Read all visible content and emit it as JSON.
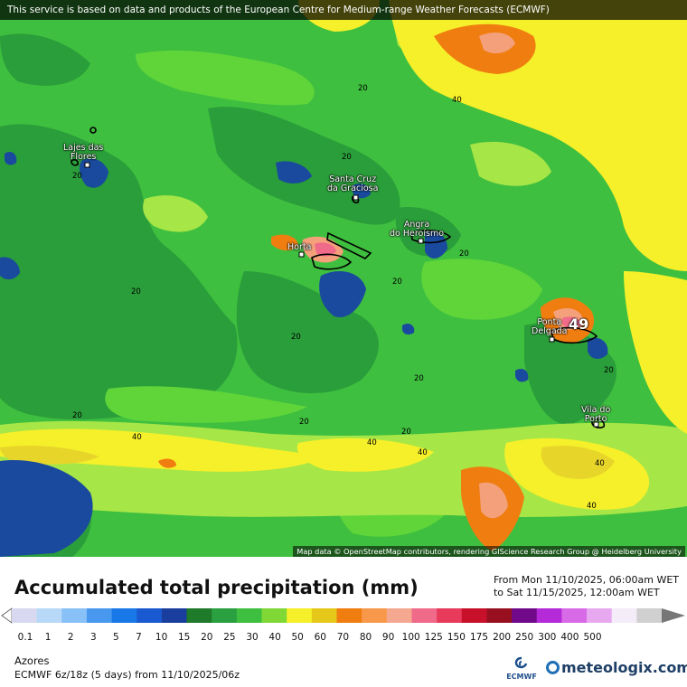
{
  "banner": "This service is based on data and products of the European Centre for Medium-range Weather Forecasts (ECMWF)",
  "attribution": "Map data © OpenStreetMap contributors, rendering GIScience Research Group @ Heidelberg University",
  "colors": {
    "green_dark": "#2a9e3a",
    "green": "#3fbf3f",
    "green_light": "#5fd53a",
    "yellow_green": "#a6e646",
    "yellow": "#f5f02a",
    "yellow_dark": "#e8d52a",
    "orange": "#f07d10",
    "salmon": "#f4a07a",
    "pink": "#f06a8a",
    "blue": "#1a4a9e"
  },
  "towns": [
    {
      "id": "lajes",
      "line1": "Lajes das",
      "line2": "Flores"
    },
    {
      "id": "santa-cruz",
      "line1": "Santa Cruz",
      "line2": "da Graciosa"
    },
    {
      "id": "angra",
      "line1": "Angra",
      "line2": "do Heroísmo"
    },
    {
      "id": "horta",
      "line1": "Horta",
      "line2": ""
    },
    {
      "id": "ponta",
      "line1": "Ponta",
      "line2": "Delgada"
    },
    {
      "id": "vila",
      "line1": "Vila do",
      "line2": "Porto"
    }
  ],
  "isoline_labels": [
    {
      "id": "iso-1",
      "text": "20"
    },
    {
      "id": "iso-2",
      "text": "40"
    },
    {
      "id": "iso-3",
      "text": "20"
    },
    {
      "id": "iso-4",
      "text": "20"
    },
    {
      "id": "iso-5",
      "text": "20"
    },
    {
      "id": "iso-6",
      "text": "20"
    },
    {
      "id": "iso-7",
      "text": "20"
    },
    {
      "id": "iso-8",
      "text": "20"
    },
    {
      "id": "iso-9",
      "text": "20"
    },
    {
      "id": "iso-10",
      "text": "20"
    },
    {
      "id": "iso-11",
      "text": "40"
    },
    {
      "id": "iso-12",
      "text": "40"
    },
    {
      "id": "iso-13",
      "text": "20"
    },
    {
      "id": "iso-14",
      "text": "40"
    },
    {
      "id": "iso-15",
      "text": "40"
    },
    {
      "id": "iso-16",
      "text": "40"
    },
    {
      "id": "iso-17",
      "text": "20"
    },
    {
      "id": "iso-18",
      "text": "20"
    }
  ],
  "max_value": "49",
  "title": "Accumulated total precipitation (mm)",
  "period": {
    "from": "From Mon 11/10/2025, 06:00am WET",
    "to": "to Sat 11/15/2025, 12:00am WET"
  },
  "legend": {
    "labels": [
      "0.1",
      "1",
      "2",
      "3",
      "5",
      "7",
      "10",
      "15",
      "20",
      "25",
      "30",
      "40",
      "50",
      "60",
      "70",
      "80",
      "90",
      "100",
      "125",
      "150",
      "175",
      "200",
      "250",
      "300",
      "400",
      "500"
    ],
    "colors": [
      "#d8d8f0",
      "#b8d8f8",
      "#88c0f8",
      "#4898f0",
      "#1878e8",
      "#1a5ad0",
      "#1a3e9e",
      "#1f7a2a",
      "#2aa040",
      "#3fbf3f",
      "#7fd836",
      "#f5f02a",
      "#e6c81a",
      "#f07d10",
      "#f8984a",
      "#f4a890",
      "#f06a8a",
      "#e83a5a",
      "#c8102a",
      "#981020",
      "#700a8a",
      "#b42ad8",
      "#d86ae8",
      "#e8a8f0",
      "#f4ecf8",
      "#d0d0d0"
    ]
  },
  "region": "Azores",
  "model_info": "ECMWF 6z/18z (5 days) from 11/10/2025/06z",
  "logos": {
    "ecmwf": "ECMWF",
    "meteologix": "meteologix.com"
  }
}
